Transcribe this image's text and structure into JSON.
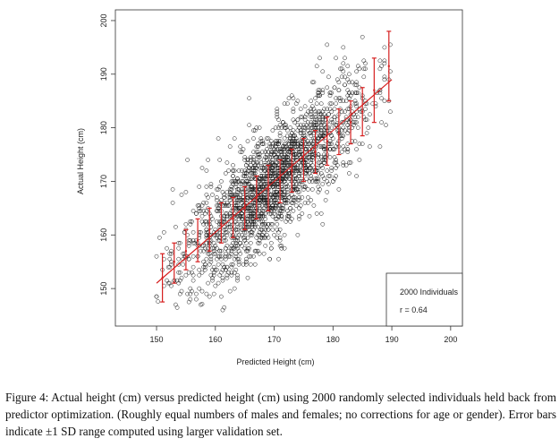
{
  "chart_data": {
    "type": "scatter",
    "xlabel": "Predicted Height (cm)",
    "ylabel": "Actual Height (cm)",
    "xlim": [
      143,
      202
    ],
    "ylim": [
      143,
      202
    ],
    "xticks": [
      150,
      160,
      170,
      180,
      190,
      200
    ],
    "yticks": [
      150,
      160,
      170,
      180,
      190,
      200
    ],
    "points": {
      "n": 2000,
      "correlation": 0.64,
      "x_range": [
        150,
        190
      ],
      "note": "individual circles, approx. bivariate distribution around y = x"
    },
    "fit_line": {
      "x": [
        150,
        190
      ],
      "y": [
        151,
        189
      ],
      "color": "#d62020"
    },
    "error_bars": [
      {
        "x": 151,
        "y": 152,
        "low": 147.5,
        "high": 156.5
      },
      {
        "x": 153,
        "y": 155,
        "low": 151,
        "high": 158.5
      },
      {
        "x": 155,
        "y": 157,
        "low": 153.5,
        "high": 161
      },
      {
        "x": 157,
        "y": 159,
        "low": 155,
        "high": 163
      },
      {
        "x": 159,
        "y": 161,
        "low": 157,
        "high": 165
      },
      {
        "x": 161,
        "y": 162,
        "low": 158.5,
        "high": 166
      },
      {
        "x": 163,
        "y": 163,
        "low": 159.5,
        "high": 167
      },
      {
        "x": 165,
        "y": 165,
        "low": 161,
        "high": 169
      },
      {
        "x": 167,
        "y": 167,
        "low": 163,
        "high": 171
      },
      {
        "x": 169,
        "y": 168.5,
        "low": 164.5,
        "high": 173
      },
      {
        "x": 171,
        "y": 170,
        "low": 166,
        "high": 174
      },
      {
        "x": 173,
        "y": 172,
        "low": 168,
        "high": 176
      },
      {
        "x": 175,
        "y": 174,
        "low": 170,
        "high": 178
      },
      {
        "x": 177,
        "y": 175.5,
        "low": 171.5,
        "high": 179.5
      },
      {
        "x": 179,
        "y": 177.5,
        "low": 173,
        "high": 182
      },
      {
        "x": 181,
        "y": 179,
        "low": 175,
        "high": 183.5
      },
      {
        "x": 183,
        "y": 181,
        "low": 177,
        "high": 185
      },
      {
        "x": 185,
        "y": 183,
        "low": 178.5,
        "high": 187.5
      },
      {
        "x": 187,
        "y": 187,
        "low": 181,
        "high": 193
      },
      {
        "x": 189.5,
        "y": 191.5,
        "low": 185,
        "high": 198
      }
    ],
    "legend": {
      "position": "bottom-right",
      "label": "2000 Individuals",
      "stat": "r = 0.64"
    },
    "colors": {
      "points": "#1a1a1a",
      "error_bars": "#d62020"
    }
  },
  "caption": "Figure 4: Actual height (cm) versus predicted height (cm) using 2000 randomly selected individuals held back from predictor optimization. (Roughly equal numbers of males and females; no corrections for age or gender). Error bars indicate ±1 SD range computed using larger validation set."
}
